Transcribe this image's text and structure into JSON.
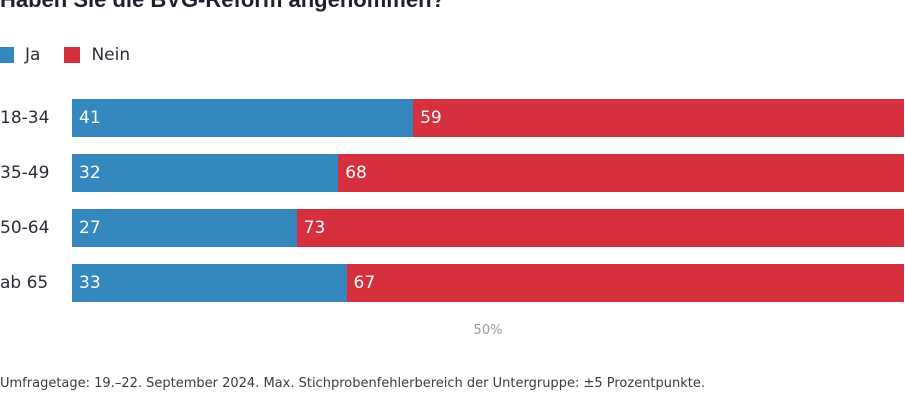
{
  "chart_data": {
    "type": "bar",
    "orientation": "horizontal",
    "stacked": true,
    "title": "Haben Sie die BVG-Reform angenommen?",
    "categories": [
      "18-34",
      "35-49",
      "50-64",
      "ab 65"
    ],
    "series": [
      {
        "name": "Ja",
        "color": "#3588bd",
        "values": [
          41,
          32,
          27,
          33
        ]
      },
      {
        "name": "Nein",
        "color": "#d6303f",
        "values": [
          59,
          68,
          73,
          67
        ]
      }
    ],
    "xlim": [
      0,
      100
    ],
    "ticks": [
      {
        "value": 50,
        "label": "50%"
      }
    ],
    "legend": "top-left",
    "grid": false
  },
  "footnote": "Umfragetage: 19.–22. September 2024. Max. Stichprobenfehlerbereich der Untergruppe: ±5 Prozentpunkte."
}
